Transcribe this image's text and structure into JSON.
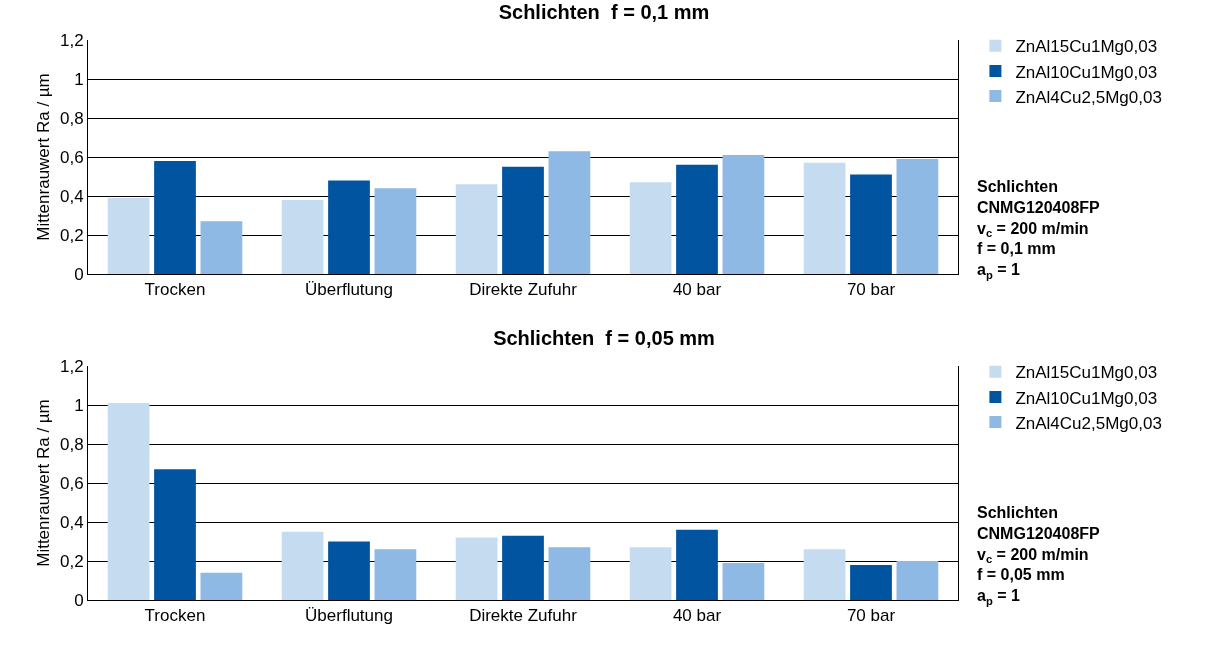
{
  "chart_data": [
    {
      "type": "bar",
      "title": "Schlichten  f = 0,1 mm",
      "ylabel": "Mittenrauwert Ra / µm",
      "categories": [
        "Trocken",
        "Überflutung",
        "Direkte Zufuhr",
        "40 bar",
        "70 bar"
      ],
      "series": [
        {
          "name": "ZnAl15Cu1Mg0,03",
          "color": "#c5dcf0",
          "values": [
            0.39,
            0.38,
            0.46,
            0.47,
            0.57
          ]
        },
        {
          "name": "ZnAl10Cu1Mg0,03",
          "color": "#0054a0",
          "values": [
            0.58,
            0.48,
            0.55,
            0.56,
            0.51
          ]
        },
        {
          "name": "ZnAl4Cu2,5Mg0,03",
          "color": "#8db9e4",
          "values": [
            0.27,
            0.44,
            0.63,
            0.61,
            0.59
          ]
        }
      ],
      "ylim": [
        0,
        1.2
      ],
      "yticks": [
        {
          "value": 0,
          "label": "0"
        },
        {
          "value": 0.2,
          "label": "0,2"
        },
        {
          "value": 0.4,
          "label": "0,4"
        },
        {
          "value": 0.6,
          "label": "0,6"
        },
        {
          "value": 0.8,
          "label": "0,8"
        },
        {
          "value": 1,
          "label": "1"
        },
        {
          "value": 1.2,
          "label": "1,2"
        }
      ],
      "grid": "y",
      "legend": "top right",
      "annotations": [
        "Schlichten",
        "CNMG120408FP",
        "v$_{c}$ = 200 m/min",
        "f = 0,1 mm",
        "a$_{p}$ = 1"
      ]
    },
    {
      "type": "bar",
      "title": "Schlichten  f = 0,05 mm",
      "ylabel": "Mittenrauwert Ra / µm",
      "categories": [
        "Trocken",
        "Überflutung",
        "Direkte Zufuhr",
        "40 bar",
        "70 bar"
      ],
      "series": [
        {
          "name": "ZnAl15Cu1Mg0,03",
          "color": "#c5dcf0",
          "values": [
            1.01,
            0.35,
            0.32,
            0.27,
            0.26
          ]
        },
        {
          "name": "ZnAl10Cu1Mg0,03",
          "color": "#0054a0",
          "values": [
            0.67,
            0.3,
            0.33,
            0.36,
            0.18
          ]
        },
        {
          "name": "ZnAl4Cu2,5Mg0,03",
          "color": "#8db9e4",
          "values": [
            0.14,
            0.26,
            0.27,
            0.19,
            0.2
          ]
        }
      ],
      "ylim": [
        0,
        1.2
      ],
      "yticks": [
        {
          "value": 0,
          "label": "0"
        },
        {
          "value": 0.2,
          "label": "0,2"
        },
        {
          "value": 0.4,
          "label": "0,4"
        },
        {
          "value": 0.6,
          "label": "0,6"
        },
        {
          "value": 0.8,
          "label": "0,8"
        },
        {
          "value": 1,
          "label": "1"
        },
        {
          "value": 1.2,
          "label": "1,2"
        }
      ],
      "grid": "y",
      "legend": "top right",
      "annotations": [
        "Schlichten",
        "CNMG120408FP",
        "v$_{c}$ = 200 m/min",
        "f = 0,05 mm",
        "a$_{p}$ = 1"
      ]
    }
  ]
}
